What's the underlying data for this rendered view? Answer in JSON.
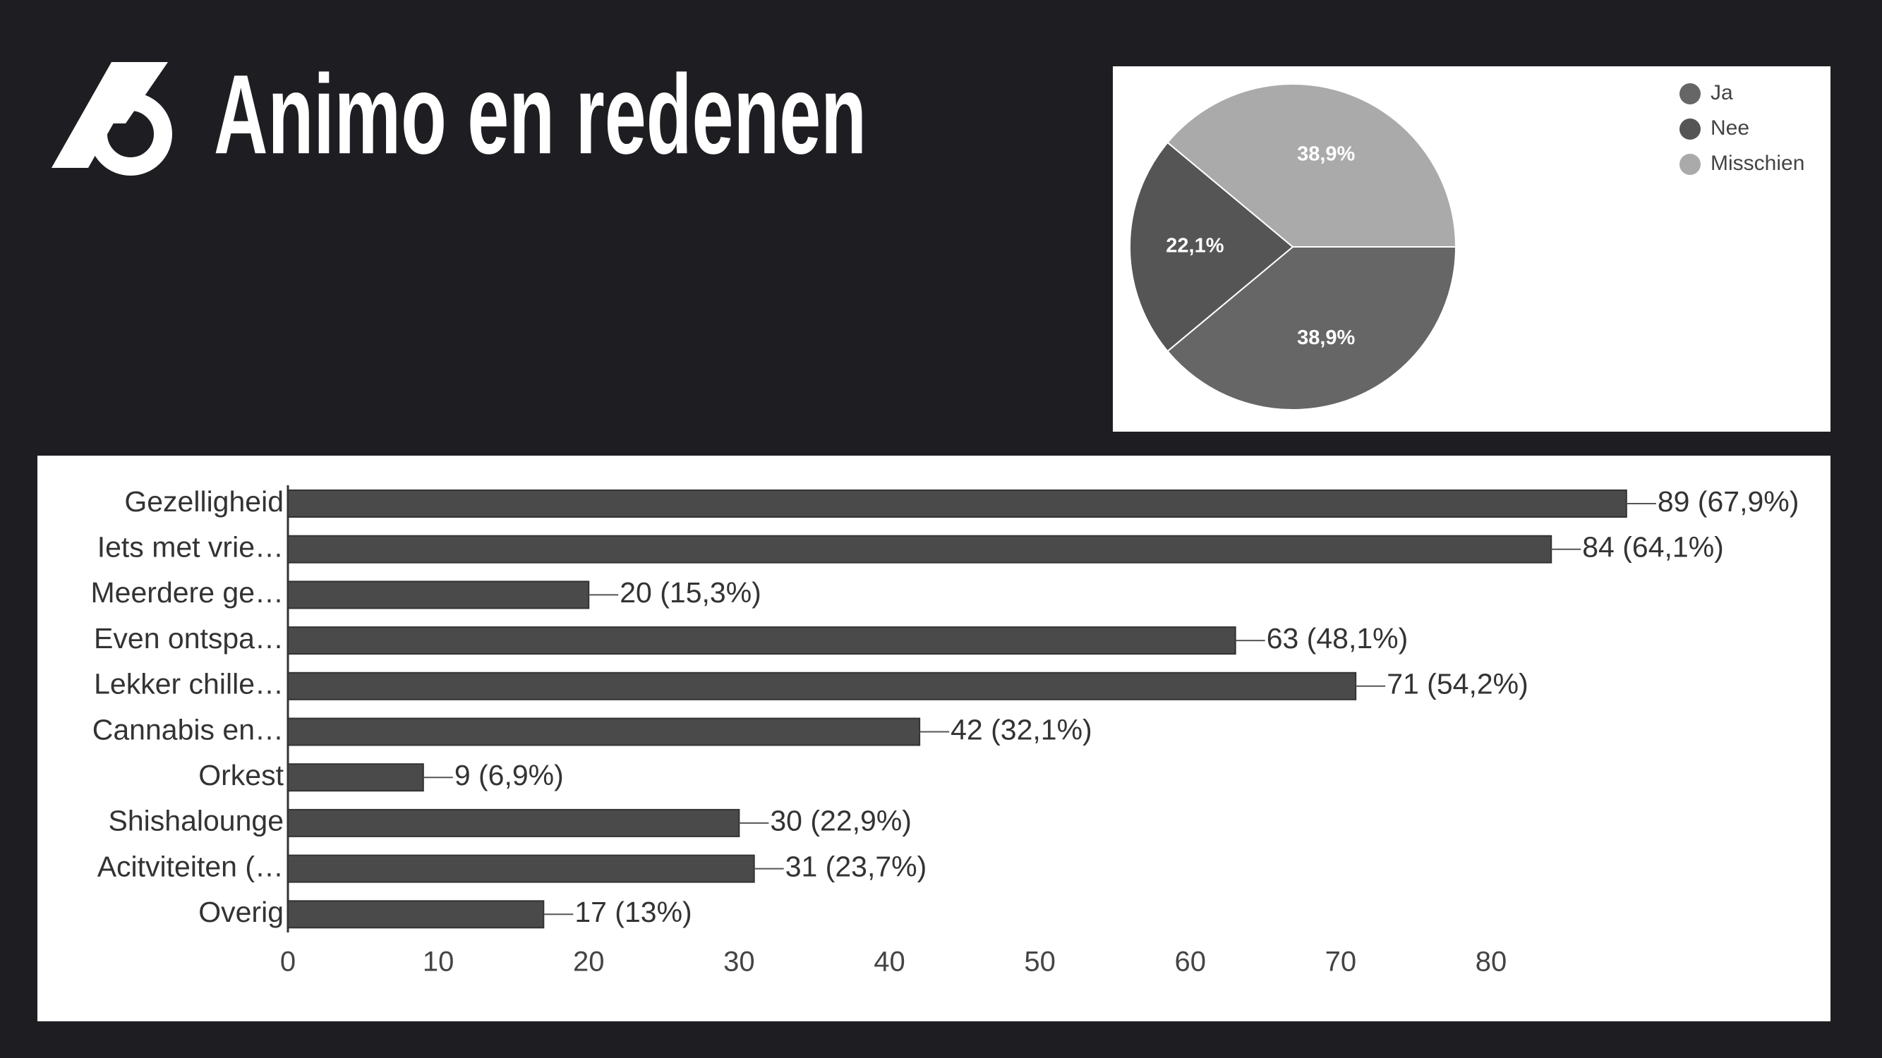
{
  "title": "Animo en redenen",
  "chart_data": [
    {
      "type": "pie",
      "categories": [
        "Ja",
        "Nee",
        "Misschien"
      ],
      "values": [
        38.9,
        22.1,
        38.9
      ],
      "value_labels": [
        "38,9%",
        "22,1%",
        "38,9%"
      ],
      "colors": [
        "#666666",
        "#555555",
        "#aaaaaa"
      ],
      "legend": "top-right"
    },
    {
      "type": "bar",
      "orientation": "horizontal",
      "categories": [
        "Gezelligheid",
        "Iets met vrie…",
        "Meerdere ge…",
        "Even ontspa…",
        "Lekker chille…",
        "Cannabis en…",
        "Orkest",
        "Shishalounge",
        "Acitviteiten (…",
        "Overig"
      ],
      "values": [
        89,
        84,
        20,
        63,
        71,
        42,
        9,
        30,
        31,
        17
      ],
      "value_labels": [
        "89 (67,9%)",
        "84 (64,1%)",
        "20 (15,3%)",
        "63 (48,1%)",
        "71 (54,2%)",
        "42 (32,1%)",
        "9 (6,9%)",
        "30 (22,9%)",
        "31 (23,7%)",
        "17 (13%)"
      ],
      "color": "#4a4a4a",
      "xlim": [
        0,
        90
      ],
      "xticks": [
        0,
        10,
        20,
        30,
        40,
        50,
        60,
        70,
        80
      ]
    }
  ]
}
